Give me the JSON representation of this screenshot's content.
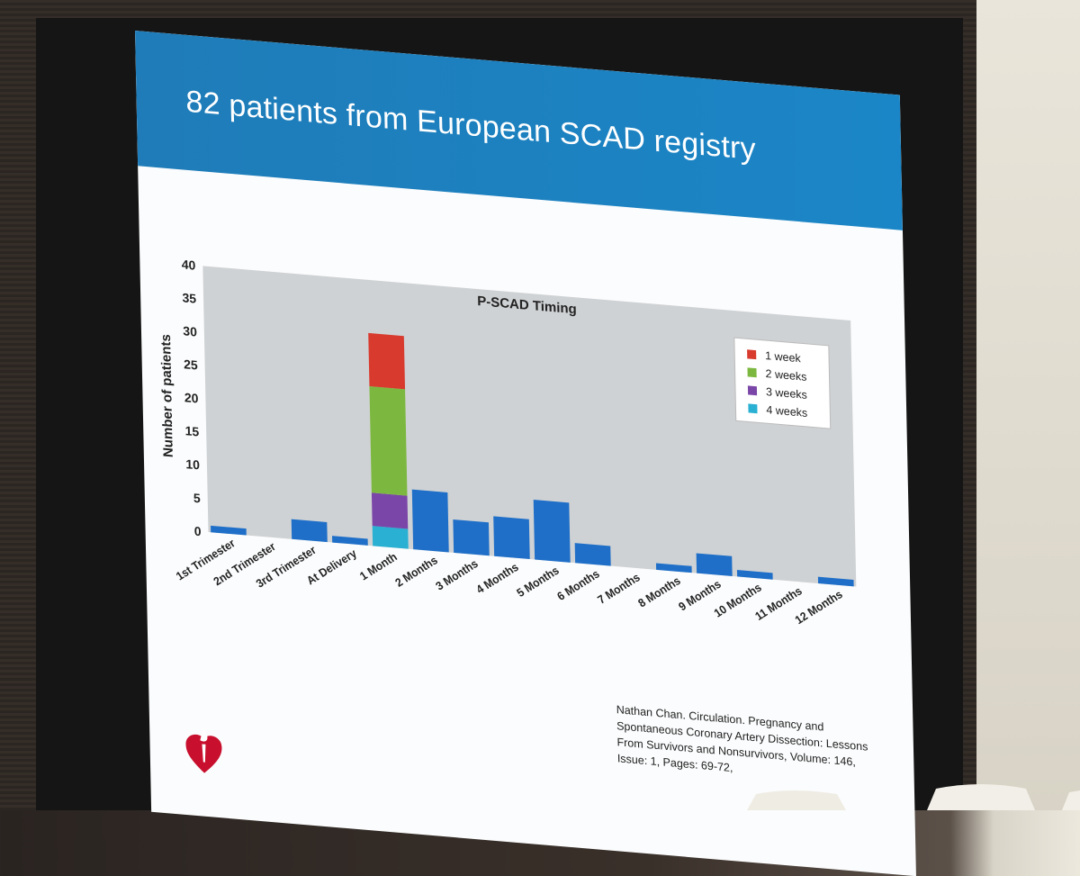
{
  "slide": {
    "title": "82 patients from European SCAD registry",
    "citation": "Nathan Chan. Circulation. Pregnancy and Spontaneous Coronary Artery Dissection: Lessons From Survivors and Nonsurvivors, Volume: 146, Issue: 1, Pages: 69-72,"
  },
  "colors": {
    "header": "#1b86c7",
    "plot_bg": "#cfd2d4",
    "bar": "#1f6fc8",
    "week1": "#d83a2e",
    "week2": "#7cb83f",
    "week3": "#7a46a8",
    "week4": "#29b0d2"
  },
  "chart_data": {
    "type": "bar",
    "title": "P-SCAD Timing",
    "ylabel": "Number of patients",
    "xlabel": "",
    "ylim": [
      0,
      40
    ],
    "yticks": [
      0,
      5,
      10,
      15,
      20,
      25,
      30,
      35,
      40
    ],
    "categories": [
      "1st Trimester",
      "2nd Trimester",
      "3rd Trimester",
      "At Delivery",
      "1 Month",
      "2 Months",
      "3 Months",
      "4 Months",
      "5 Months",
      "6 Months",
      "7 Months",
      "8 Months",
      "9 Months",
      "10 Months",
      "11 Months",
      "12 Months"
    ],
    "values": [
      1,
      0,
      3,
      1,
      32,
      9,
      5,
      6,
      9,
      3,
      0,
      1,
      3,
      1,
      0,
      1
    ],
    "stacked_category": "1 Month",
    "stacked_series": [
      {
        "name": "4 weeks",
        "value": 3
      },
      {
        "name": "3 weeks",
        "value": 5
      },
      {
        "name": "2 weeks",
        "value": 16
      },
      {
        "name": "1 week",
        "value": 8
      }
    ],
    "legend": [
      "1 week",
      "2 weeks",
      "3 weeks",
      "4 weeks"
    ],
    "legend_position": "top-right",
    "grid": false
  }
}
